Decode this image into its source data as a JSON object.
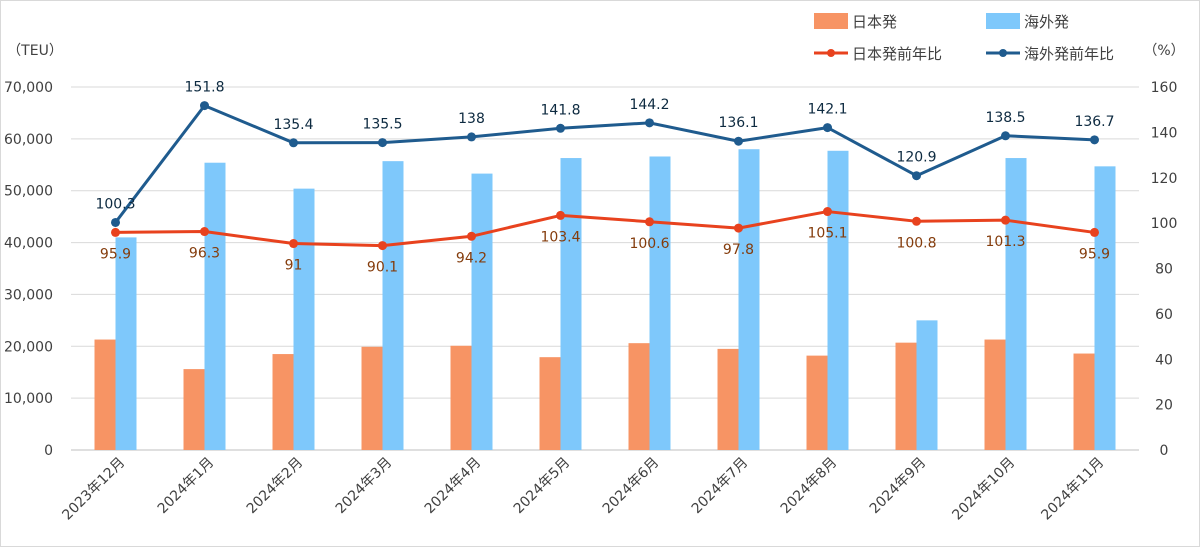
{
  "chart_data": {
    "type": "bar",
    "categories": [
      "2023年12月",
      "2024年1月",
      "2024年2月",
      "2024年3月",
      "2024年4月",
      "2024年5月",
      "2024年6月",
      "2024年7月",
      "2024年8月",
      "2024年9月",
      "2024年10月",
      "2024年11月"
    ],
    "series": [
      {
        "name": "日本発",
        "kind": "bar",
        "axis": "left",
        "color": "#f79464",
        "values": [
          21300,
          15600,
          18500,
          19900,
          20100,
          17900,
          20600,
          19500,
          18200,
          20700,
          21300,
          18600
        ]
      },
      {
        "name": "海外発",
        "kind": "bar",
        "axis": "left",
        "color": "#7ec8fb",
        "values": [
          41000,
          55400,
          50400,
          55700,
          53300,
          56300,
          56600,
          58000,
          57700,
          25000,
          56300,
          54700
        ]
      },
      {
        "name": "日本発前年比",
        "kind": "line",
        "axis": "right",
        "color": "#e8421e",
        "values": [
          95.9,
          96.3,
          91,
          90.1,
          94.2,
          103.4,
          100.6,
          97.8,
          105.1,
          100.8,
          101.3,
          95.9
        ],
        "labels": [
          "95.9",
          "96.3",
          "91",
          "90.1",
          "94.2",
          "103.4",
          "100.6",
          "97.8",
          "105.1",
          "100.8",
          "101.3",
          "95.9"
        ]
      },
      {
        "name": "海外発前年比",
        "kind": "line",
        "axis": "right",
        "color": "#1f5b8e",
        "values": [
          100.3,
          151.8,
          135.4,
          135.5,
          138,
          141.8,
          144.2,
          136.1,
          142.1,
          120.9,
          138.5,
          136.7
        ],
        "labels": [
          "100.3",
          "151.8",
          "135.4",
          "135.5",
          "138",
          "141.8",
          "144.2",
          "136.1",
          "142.1",
          "120.9",
          "138.5",
          "136.7"
        ]
      }
    ],
    "ylabel": "（TEU）",
    "y2label": "（%）",
    "ylim": [
      0,
      70000
    ],
    "y2lim": [
      0,
      160
    ],
    "yticks": [
      "0",
      "10,000",
      "20,000",
      "30,000",
      "40,000",
      "50,000",
      "60,000",
      "70,000"
    ],
    "y2ticks": [
      "0",
      "20",
      "40",
      "60",
      "80",
      "100",
      "120",
      "140",
      "160"
    ],
    "grid": true,
    "legend_position": "top-right"
  }
}
